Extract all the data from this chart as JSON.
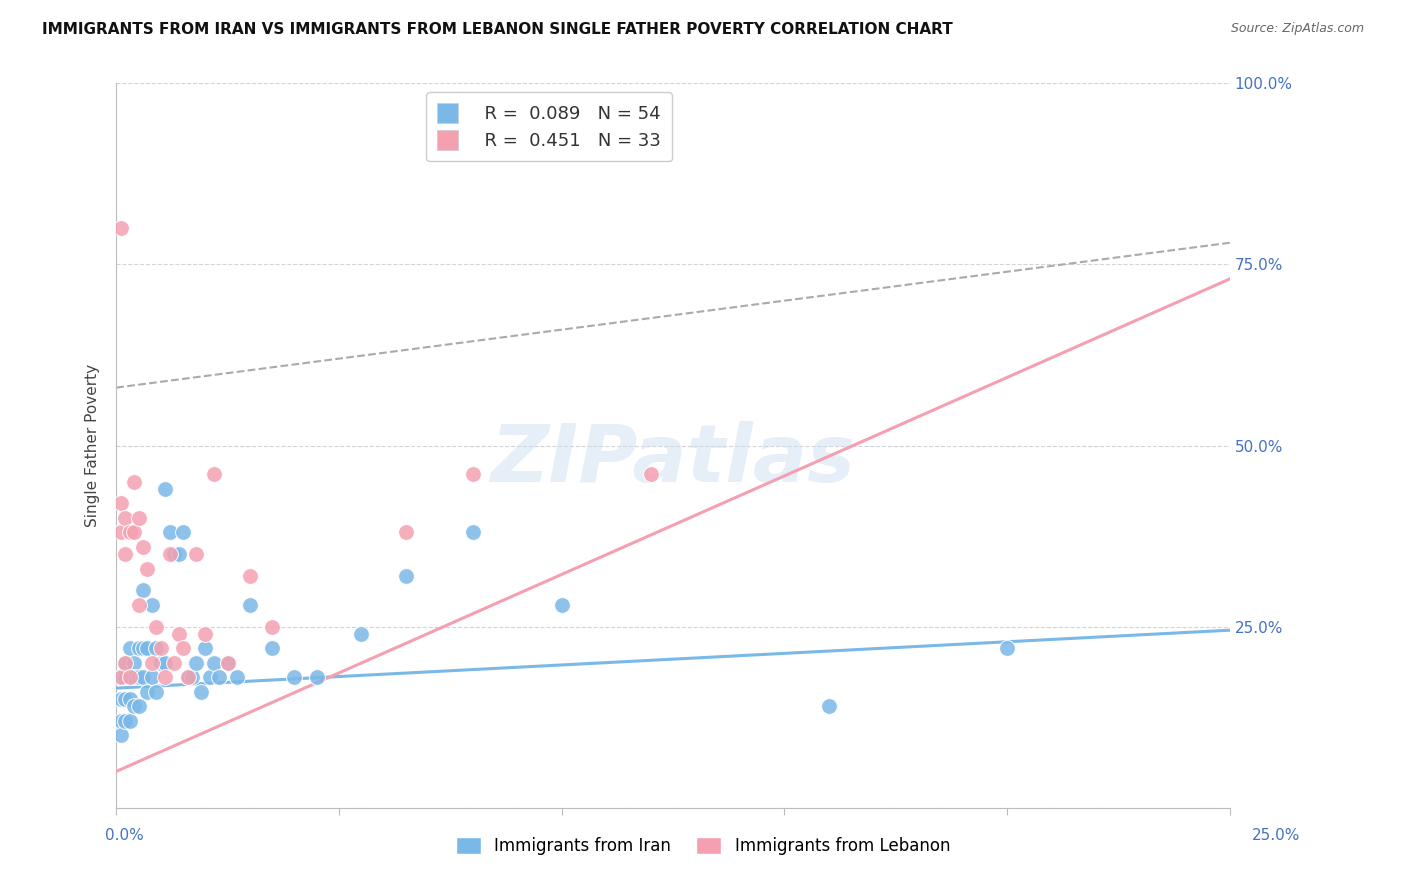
{
  "title": "IMMIGRANTS FROM IRAN VS IMMIGRANTS FROM LEBANON SINGLE FATHER POVERTY CORRELATION CHART",
  "source": "Source: ZipAtlas.com",
  "ylabel": "Single Father Poverty",
  "ylabel_right_labels": [
    "100.0%",
    "75.0%",
    "50.0%",
    "25.0%"
  ],
  "ylabel_right_values": [
    1.0,
    0.75,
    0.5,
    0.25
  ],
  "xlim": [
    0.0,
    0.25
  ],
  "ylim": [
    0.0,
    1.0
  ],
  "iran_color": "#7ab8e8",
  "lebanon_color": "#f4a0b0",
  "iran_R": 0.089,
  "iran_N": 54,
  "lebanon_R": 0.451,
  "lebanon_N": 33,
  "watermark_text": "ZIPatlas",
  "iran_points_x": [
    0.001,
    0.001,
    0.001,
    0.001,
    0.002,
    0.002,
    0.002,
    0.002,
    0.003,
    0.003,
    0.003,
    0.003,
    0.004,
    0.004,
    0.004,
    0.005,
    0.005,
    0.005,
    0.006,
    0.006,
    0.006,
    0.007,
    0.007,
    0.008,
    0.008,
    0.009,
    0.009,
    0.01,
    0.011,
    0.011,
    0.012,
    0.013,
    0.014,
    0.015,
    0.016,
    0.017,
    0.018,
    0.019,
    0.02,
    0.021,
    0.022,
    0.023,
    0.025,
    0.027,
    0.03,
    0.035,
    0.04,
    0.045,
    0.055,
    0.065,
    0.08,
    0.1,
    0.16,
    0.2
  ],
  "iran_points_y": [
    0.18,
    0.15,
    0.12,
    0.1,
    0.2,
    0.18,
    0.15,
    0.12,
    0.22,
    0.18,
    0.15,
    0.12,
    0.2,
    0.18,
    0.14,
    0.22,
    0.18,
    0.14,
    0.3,
    0.22,
    0.18,
    0.22,
    0.16,
    0.28,
    0.18,
    0.22,
    0.16,
    0.2,
    0.44,
    0.2,
    0.38,
    0.35,
    0.35,
    0.38,
    0.18,
    0.18,
    0.2,
    0.16,
    0.22,
    0.18,
    0.2,
    0.18,
    0.2,
    0.18,
    0.28,
    0.22,
    0.18,
    0.18,
    0.24,
    0.32,
    0.38,
    0.28,
    0.14,
    0.22
  ],
  "lebanon_points_x": [
    0.001,
    0.001,
    0.001,
    0.001,
    0.002,
    0.002,
    0.002,
    0.003,
    0.003,
    0.004,
    0.004,
    0.005,
    0.005,
    0.006,
    0.007,
    0.008,
    0.009,
    0.01,
    0.011,
    0.012,
    0.013,
    0.014,
    0.015,
    0.016,
    0.018,
    0.02,
    0.022,
    0.025,
    0.03,
    0.035,
    0.065,
    0.08,
    0.12
  ],
  "lebanon_points_y": [
    0.8,
    0.42,
    0.38,
    0.18,
    0.4,
    0.35,
    0.2,
    0.38,
    0.18,
    0.45,
    0.38,
    0.4,
    0.28,
    0.36,
    0.33,
    0.2,
    0.25,
    0.22,
    0.18,
    0.35,
    0.2,
    0.24,
    0.22,
    0.18,
    0.35,
    0.24,
    0.46,
    0.2,
    0.32,
    0.25,
    0.38,
    0.46,
    0.46
  ],
  "iran_line_x": [
    0.0,
    0.25
  ],
  "iran_line_y": [
    0.165,
    0.245
  ],
  "lebanon_line_x": [
    0.0,
    0.25
  ],
  "lebanon_line_y": [
    0.05,
    0.73
  ],
  "dashed_line_x": [
    0.0,
    0.25
  ],
  "dashed_line_y": [
    0.58,
    0.78
  ]
}
